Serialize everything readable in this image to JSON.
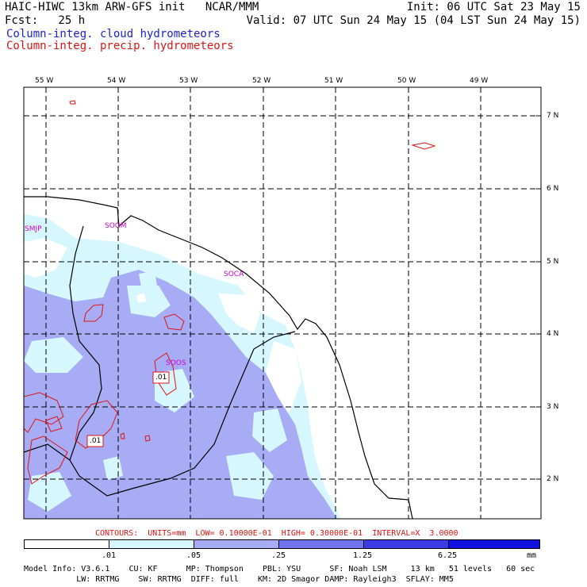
{
  "header": {
    "line1_left": "HAIC-HIWC 13km ARW-GFS init   NCAR/MMM",
    "line1_right": "Init: 06 UTC Sat 23 May 15",
    "line2_left": "Fcst:   25 h",
    "line2_right": "Valid: 07 UTC Sun 24 May 15 (04 LST Sun 24 May 15)",
    "legend_cloud": "Column-integ. cloud hydrometeors",
    "legend_precip": "Column-integ. precip. hydrometeors",
    "legend_cloud_color": "#1f1fd6",
    "legend_precip_color": "#e01414"
  },
  "map": {
    "lon_labels": [
      "55 W",
      "54 W",
      "53 W",
      "52 W",
      "51 W",
      "50 W",
      "49 W"
    ],
    "lat_labels": [
      "7 N",
      "6 N",
      "5 N",
      "4 N",
      "3 N",
      "2 N"
    ],
    "stations": [
      "SMJP",
      "SOGM",
      "SOCA",
      "SOOS"
    ],
    "contour_labels": [
      ".01",
      ".01"
    ]
  },
  "contour_info": "CONTOURS:  UNITS=mm  LOW= 0.10000E-01  HIGH= 0.30000E-01  INTERVAL=X  3.0000",
  "colorbar": {
    "labels": [
      ".01",
      ".05",
      ".25",
      "1.25",
      "6.25",
      "mm"
    ],
    "colors": [
      "#ffffff",
      "#d6f7fd",
      "#a7acf5",
      "#7173ef",
      "#3c3ce6",
      "#1010e0"
    ]
  },
  "footer": {
    "line1": "Model Info: V3.6.1    CU: KF      MP: Thompson    PBL: YSU      SF: Noah LSM     13 km   51 levels   60 sec",
    "line2": "           LW: RRTMG    SW: RRTMG  DIFF: full    KM: 2D Smagor DAMP: Rayleigh3  SFLAY: MM5"
  }
}
